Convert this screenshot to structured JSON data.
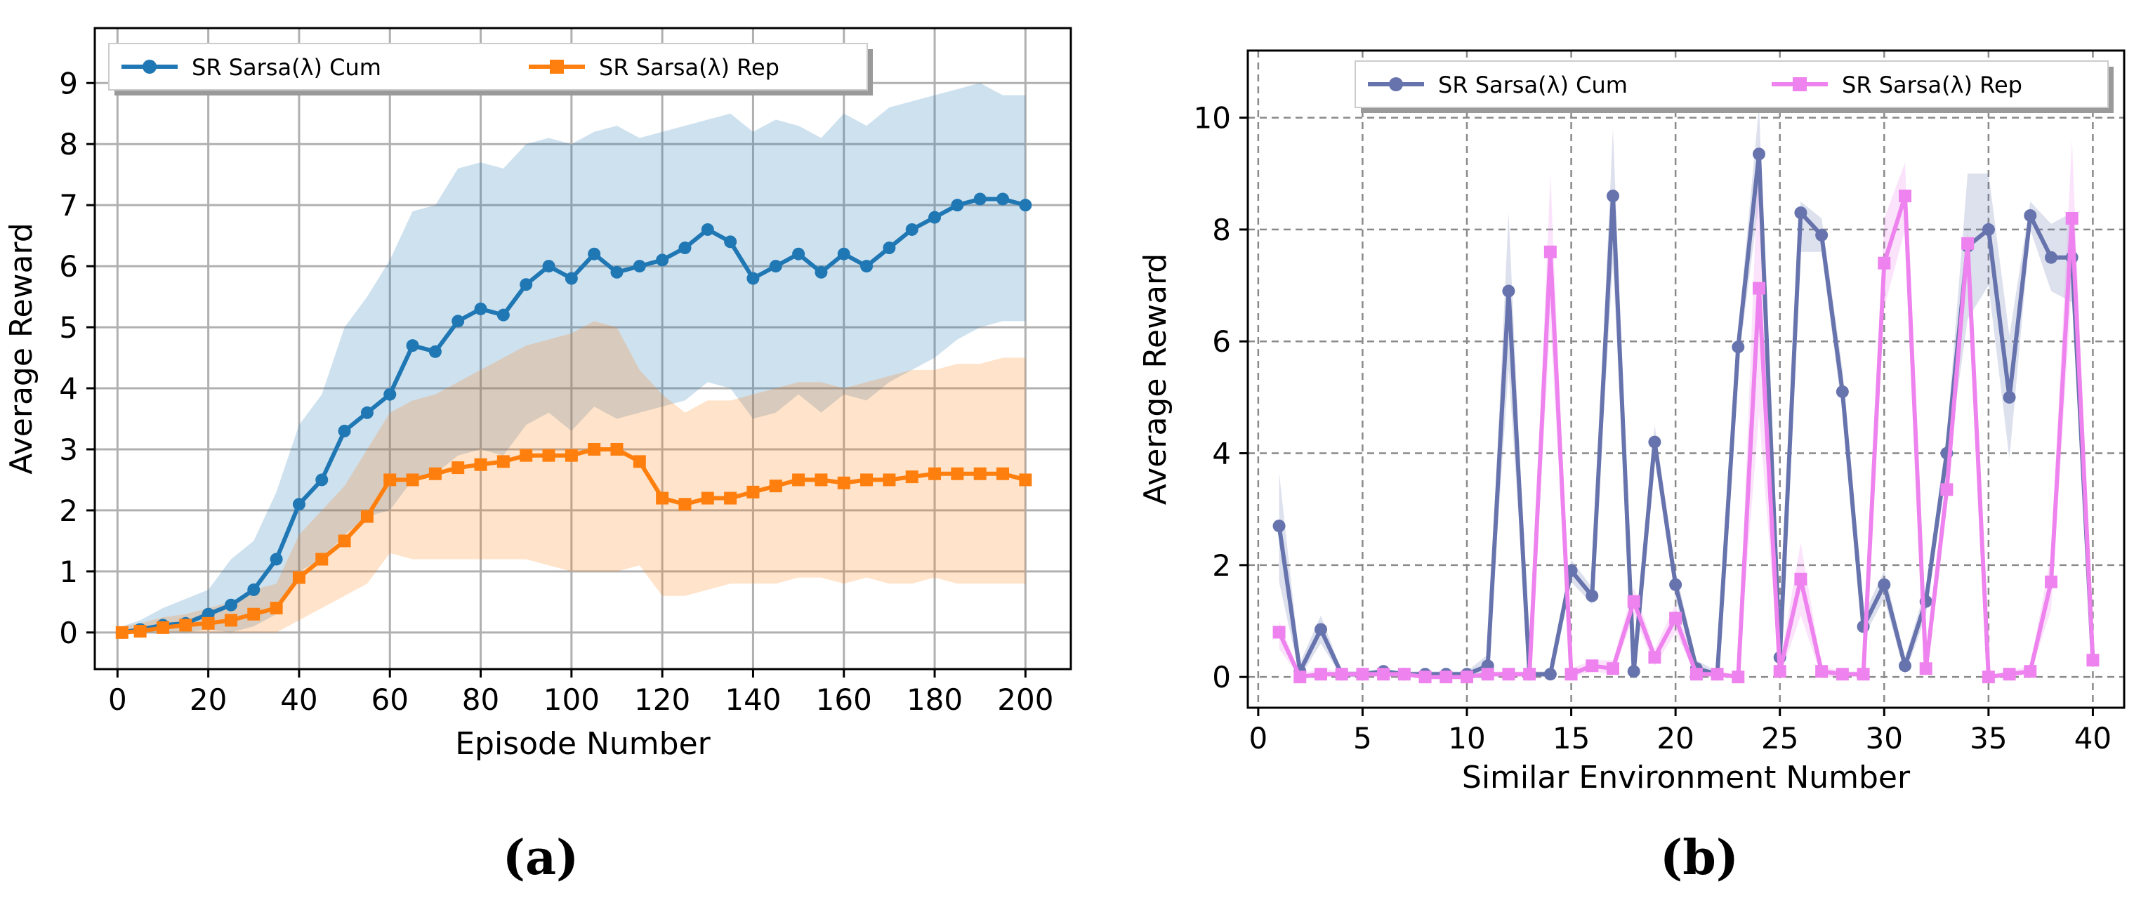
{
  "chart_data": [
    {
      "type": "line",
      "panel_label": "(a)",
      "xlabel": "Episode Number",
      "ylabel": "Average Reward",
      "xlim": [
        -5,
        210
      ],
      "ylim": [
        -0.6,
        9.9
      ],
      "xticks": [
        "0",
        "20",
        "40",
        "60",
        "80",
        "100",
        "120",
        "140",
        "160",
        "180",
        "200"
      ],
      "yticks": [
        "0",
        "1",
        "2",
        "3",
        "4",
        "5",
        "6",
        "7",
        "8",
        "9"
      ],
      "grid": true,
      "legend_position": "top",
      "series": [
        {
          "name": "SR Sarsa(λ) Cum",
          "color": "#1f77b4",
          "marker": "circle",
          "x": [
            1,
            5,
            10,
            15,
            20,
            25,
            30,
            35,
            40,
            45,
            50,
            55,
            60,
            65,
            70,
            75,
            80,
            85,
            90,
            95,
            100,
            105,
            110,
            115,
            120,
            125,
            130,
            135,
            140,
            145,
            150,
            155,
            160,
            165,
            170,
            175,
            180,
            185,
            190,
            195,
            200
          ],
          "values": [
            0.0,
            0.05,
            0.12,
            0.15,
            0.3,
            0.45,
            0.7,
            1.2,
            2.1,
            2.5,
            3.3,
            3.6,
            3.9,
            4.7,
            4.6,
            5.1,
            5.3,
            5.2,
            5.7,
            6.0,
            5.8,
            6.2,
            5.9,
            6.0,
            6.1,
            6.3,
            6.6,
            6.4,
            5.8,
            6.0,
            6.2,
            5.9,
            6.2,
            6.0,
            6.3,
            6.6,
            6.8,
            7.0,
            7.1,
            7.1,
            7.0
          ],
          "band_upper": [
            0.1,
            0.2,
            0.4,
            0.55,
            0.7,
            1.2,
            1.5,
            2.3,
            3.4,
            3.9,
            5.0,
            5.5,
            6.1,
            6.9,
            7.0,
            7.6,
            7.7,
            7.6,
            8.0,
            8.1,
            8.0,
            8.2,
            8.3,
            8.1,
            8.2,
            8.3,
            8.4,
            8.5,
            8.2,
            8.4,
            8.3,
            8.1,
            8.5,
            8.3,
            8.6,
            8.7,
            8.8,
            8.9,
            9.0,
            8.8,
            8.8
          ],
          "band_lower": [
            0.0,
            0.0,
            0.0,
            0.0,
            0.05,
            0.0,
            0.1,
            0.3,
            1.0,
            1.2,
            1.6,
            1.9,
            2.0,
            2.5,
            2.6,
            2.9,
            3.0,
            2.9,
            3.4,
            3.6,
            3.3,
            3.7,
            3.5,
            3.6,
            3.7,
            3.8,
            4.1,
            4.0,
            3.5,
            3.6,
            3.9,
            3.6,
            3.9,
            3.8,
            4.1,
            4.3,
            4.5,
            4.8,
            5.0,
            5.1,
            5.1
          ]
        },
        {
          "name": "SR Sarsa(λ) Rep",
          "color": "#ff7f0e",
          "marker": "square",
          "x": [
            1,
            5,
            10,
            15,
            20,
            25,
            30,
            35,
            40,
            45,
            50,
            55,
            60,
            65,
            70,
            75,
            80,
            85,
            90,
            95,
            100,
            105,
            110,
            115,
            120,
            125,
            130,
            135,
            140,
            145,
            150,
            155,
            160,
            165,
            170,
            175,
            180,
            185,
            190,
            195,
            200
          ],
          "values": [
            0.0,
            0.02,
            0.08,
            0.12,
            0.15,
            0.2,
            0.3,
            0.4,
            0.9,
            1.2,
            1.5,
            1.9,
            2.5,
            2.5,
            2.6,
            2.7,
            2.75,
            2.8,
            2.9,
            2.9,
            2.9,
            3.0,
            3.0,
            2.8,
            2.2,
            2.1,
            2.2,
            2.2,
            2.3,
            2.4,
            2.5,
            2.5,
            2.45,
            2.5,
            2.5,
            2.55,
            2.6,
            2.6,
            2.6,
            2.6,
            2.5
          ],
          "band_upper": [
            0.1,
            0.15,
            0.25,
            0.3,
            0.4,
            0.5,
            0.7,
            0.8,
            1.6,
            2.0,
            2.4,
            3.0,
            3.6,
            3.8,
            3.9,
            4.1,
            4.3,
            4.5,
            4.7,
            4.8,
            4.9,
            5.1,
            5.0,
            4.3,
            3.9,
            3.6,
            3.8,
            3.8,
            3.9,
            4.0,
            4.1,
            4.1,
            4.0,
            4.1,
            4.2,
            4.3,
            4.3,
            4.4,
            4.4,
            4.5,
            4.5
          ],
          "band_lower": [
            0.0,
            0.0,
            0.0,
            0.0,
            0.0,
            0.0,
            0.0,
            0.0,
            0.2,
            0.4,
            0.6,
            0.8,
            1.3,
            1.2,
            1.2,
            1.2,
            1.2,
            1.2,
            1.2,
            1.1,
            1.0,
            1.0,
            1.0,
            1.1,
            0.6,
            0.6,
            0.7,
            0.8,
            0.8,
            0.8,
            0.9,
            0.9,
            0.8,
            0.9,
            0.8,
            0.8,
            0.9,
            0.8,
            0.8,
            0.8,
            0.8
          ]
        }
      ]
    },
    {
      "type": "line",
      "panel_label": "(b)",
      "xlabel": "Similar Environment Number",
      "ylabel": "Average Reward",
      "xlim": [
        -0.5,
        41.5
      ],
      "ylim": [
        -0.55,
        11.2
      ],
      "xticks": [
        "0",
        "5",
        "10",
        "15",
        "20",
        "25",
        "30",
        "35",
        "40"
      ],
      "yticks": [
        "0",
        "2",
        "4",
        "6",
        "8",
        "10"
      ],
      "grid": true,
      "grid_style": "dashed",
      "legend_position": "top",
      "series": [
        {
          "name": "SR Sarsa(λ) Cum",
          "color": "#6673ad",
          "marker": "circle",
          "x": [
            1,
            2,
            3,
            4,
            5,
            6,
            7,
            8,
            9,
            10,
            11,
            12,
            13,
            14,
            15,
            16,
            17,
            18,
            19,
            20,
            21,
            22,
            23,
            24,
            25,
            26,
            27,
            28,
            29,
            30,
            31,
            32,
            33,
            34,
            35,
            36,
            37,
            38,
            39,
            40
          ],
          "values": [
            2.7,
            0.1,
            0.85,
            0.05,
            0.05,
            0.1,
            0.05,
            0.05,
            0.05,
            0.05,
            0.2,
            6.9,
            0.05,
            0.05,
            1.9,
            1.45,
            8.6,
            0.1,
            4.2,
            1.65,
            0.15,
            0.05,
            5.9,
            9.35,
            0.35,
            8.3,
            7.9,
            5.1,
            0.9,
            1.65,
            0.2,
            1.35,
            4.0,
            7.7,
            8.0,
            5.0,
            8.25,
            7.5,
            7.5,
            0.3
          ],
          "band_upper": [
            3.65,
            0.25,
            1.1,
            0.1,
            0.1,
            0.15,
            0.1,
            0.1,
            0.1,
            0.1,
            0.4,
            8.3,
            0.1,
            0.1,
            2.1,
            1.6,
            9.8,
            0.35,
            4.5,
            1.9,
            0.3,
            0.1,
            6.2,
            10.2,
            0.6,
            8.5,
            8.2,
            5.5,
            1.1,
            1.9,
            0.35,
            1.6,
            4.3,
            9.0,
            9.0,
            6.1,
            8.5,
            8.1,
            8.3,
            0.45
          ],
          "band_lower": [
            1.7,
            0.0,
            0.6,
            0.0,
            0.0,
            0.05,
            0.0,
            0.0,
            0.0,
            0.0,
            0.05,
            5.5,
            0.0,
            0.0,
            1.7,
            1.3,
            7.4,
            0.0,
            3.9,
            1.4,
            0.05,
            0.0,
            5.6,
            8.5,
            0.1,
            7.6,
            7.6,
            4.7,
            0.7,
            1.4,
            0.05,
            1.1,
            3.7,
            6.4,
            7.0,
            3.9,
            8.0,
            6.9,
            6.7,
            0.15
          ]
        },
        {
          "name": "SR Sarsa(λ) Rep",
          "color": "#ee82ee",
          "marker": "square",
          "x": [
            1,
            2,
            3,
            4,
            5,
            6,
            7,
            8,
            9,
            10,
            11,
            12,
            13,
            14,
            15,
            16,
            17,
            18,
            19,
            20,
            21,
            22,
            23,
            24,
            25,
            26,
            27,
            28,
            29,
            30,
            31,
            32,
            33,
            34,
            35,
            36,
            37,
            38,
            39,
            40
          ],
          "values": [
            0.8,
            0.0,
            0.05,
            0.05,
            0.05,
            0.05,
            0.05,
            0.0,
            0.0,
            0.0,
            0.05,
            0.05,
            0.05,
            7.6,
            0.05,
            0.2,
            0.15,
            1.35,
            0.35,
            1.05,
            0.05,
            0.05,
            0.0,
            6.95,
            0.1,
            1.75,
            0.1,
            0.05,
            0.05,
            7.4,
            8.6,
            0.15,
            3.35,
            7.75,
            0.0,
            0.05,
            0.1,
            1.7,
            8.2,
            0.3
          ],
          "band_upper": [
            1.0,
            0.05,
            0.15,
            0.1,
            0.1,
            0.1,
            0.1,
            0.05,
            0.05,
            0.05,
            0.1,
            0.1,
            0.1,
            9.0,
            0.15,
            0.3,
            0.3,
            1.6,
            0.5,
            1.3,
            0.15,
            0.1,
            0.05,
            9.6,
            0.25,
            2.4,
            0.2,
            0.1,
            0.1,
            8.2,
            9.2,
            0.3,
            3.6,
            8.0,
            0.05,
            0.1,
            0.2,
            2.2,
            9.6,
            0.4
          ],
          "band_lower": [
            0.5,
            0.0,
            0.0,
            0.0,
            0.0,
            0.0,
            0.0,
            0.0,
            0.0,
            0.0,
            0.0,
            0.0,
            0.0,
            6.3,
            0.0,
            0.1,
            0.05,
            1.1,
            0.2,
            0.8,
            0.0,
            0.0,
            0.0,
            4.7,
            0.0,
            1.1,
            0.0,
            0.0,
            0.0,
            6.6,
            8.0,
            0.05,
            3.1,
            7.5,
            0.0,
            0.0,
            0.05,
            1.2,
            7.0,
            0.2
          ]
        }
      ]
    }
  ]
}
